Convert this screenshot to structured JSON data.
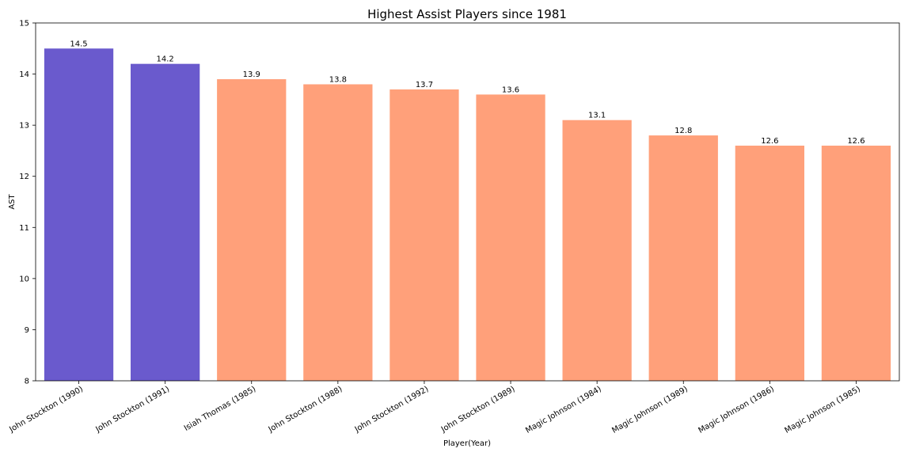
{
  "chart_data": {
    "type": "bar",
    "title": "Highest Assist Players since 1981",
    "xlabel": "Player(Year)",
    "ylabel": "AST",
    "ylim": [
      8,
      15
    ],
    "yticks": [
      "8",
      "9",
      "10",
      "11",
      "12",
      "13",
      "14",
      "15"
    ],
    "categories": [
      "John Stockton (1990)",
      "John Stockton (1991)",
      "Isiah Thomas (1985)",
      "John Stockton (1988)",
      "John Stockton (1992)",
      "John Stockton (1989)",
      "Magic Johnson (1984)",
      "Magic Johnson (1989)",
      "Magic Johnson (1986)",
      "Magic Johnson (1985)"
    ],
    "values": [
      14.5,
      14.2,
      13.9,
      13.8,
      13.7,
      13.6,
      13.1,
      12.8,
      12.6,
      12.6
    ],
    "value_labels": [
      "14.5",
      "14.2",
      "13.9",
      "13.8",
      "13.7",
      "13.6",
      "13.1",
      "12.8",
      "12.6",
      "12.6"
    ],
    "bar_colors": [
      "#6a5acd",
      "#6a5acd",
      "#ffa07a",
      "#ffa07a",
      "#ffa07a",
      "#ffa07a",
      "#ffa07a",
      "#ffa07a",
      "#ffa07a",
      "#ffa07a"
    ],
    "grid": false,
    "legend": "none"
  }
}
